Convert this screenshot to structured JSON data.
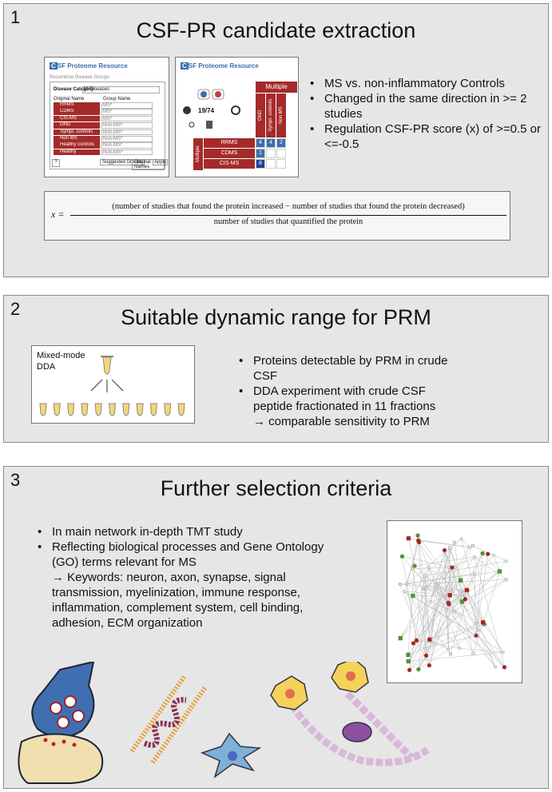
{
  "panel1": {
    "number": "1",
    "title": "CSF-PR candidate extraction",
    "screens": {
      "logo_letter": "C",
      "logo_text": "SF Proteome Resource",
      "left": {
        "subtitle": "Recombine Disease Groups",
        "category_label": "Disease Category",
        "category_value": "All Diseases",
        "col_original": "Original Name",
        "col_group": "Group Name",
        "rows": [
          {
            "original": "RRMS",
            "group": "MS*"
          },
          {
            "original": "CDMS",
            "group": "MS*"
          },
          {
            "original": "CIS-MS",
            "group": "MS*"
          },
          {
            "original": "OND",
            "group": "Non-MS*"
          },
          {
            "original": "Sympt. controls",
            "group": "Non-MS*"
          },
          {
            "original": "Non MS",
            "group": "Non-MS*"
          },
          {
            "original": "Healthy controls",
            "group": "Non-MS*"
          },
          {
            "original": "Healthy",
            "group": "Non-MS*"
          }
        ],
        "buttons": [
          "Suggested Groups",
          "Original Names",
          "Apply"
        ],
        "help": "?"
      },
      "right": {
        "count": "19/74",
        "header": "Multiple",
        "col_heads": [
          "OND",
          "Sympt. controls",
          "Non MS"
        ],
        "side_label": "Multiple",
        "row_labels": [
          "RRMS",
          "CDMS",
          "CIS-MS"
        ],
        "cells": [
          [
            "4",
            "4",
            "2"
          ],
          [
            "1",
            "",
            ""
          ],
          [
            "8",
            "",
            ""
          ]
        ]
      }
    },
    "bullets": [
      "MS vs. non-inflammatory Controls",
      "Changed in the same direction in >= 2 studies",
      "Regulation CSF-PR score (x) of >=0.5 or <=-0.5"
    ],
    "formula": {
      "lhs": "x =",
      "numerator": "(number of studies that found the protein increased − number of studies that found the protein decreased)",
      "denominator": "number of studies that quantified the protein"
    }
  },
  "panel2": {
    "number": "2",
    "title": "Suitable dynamic range for PRM",
    "box_label_1": "Mixed-mode",
    "box_label_2": "DDA",
    "bullets": [
      "Proteins detectable by PRM in crude CSF",
      "DDA experiment with crude CSF peptide fractionated in 11 fractions"
    ],
    "arrow_line": "→ comparable sensitivity to PRM",
    "fraction_count": 11
  },
  "panel3": {
    "number": "3",
    "title": "Further selection criteria",
    "bullets": [
      "In main network in-depth TMT study",
      "Reflecting biological processes and Gene Ontology (GO) terms relevant for MS"
    ],
    "keywords": "→ Keywords: neuron, axon, synapse, signal transmission, myelinization, immune response, inflammation, complement system, cell binding, adhesion, ECM organization"
  },
  "colors": {
    "panel_bg": "#e6e6e6",
    "csfpr_red": "#a52a2a",
    "csfpr_blue": "#3a6fb0",
    "node_green": "#4c9a2a",
    "node_red": "#b51d1d"
  }
}
